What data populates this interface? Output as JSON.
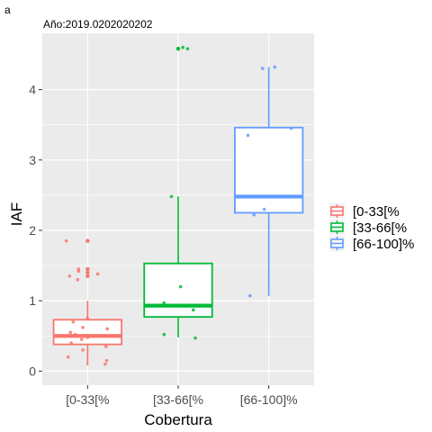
{
  "panel_label": "a",
  "chart_data": {
    "type": "boxplot",
    "title": "Año:2019.0202020202",
    "xlabel": "Cobertura",
    "ylabel": "IAF",
    "categories": [
      "[0-33[%",
      "[33-66[%",
      "[66-100]%"
    ],
    "ylim": [
      -0.2,
      4.8
    ],
    "yticks": [
      0,
      1,
      2,
      3,
      4
    ],
    "ytick_labels": [
      "0",
      "1",
      "2",
      "3",
      "4"
    ],
    "grid": true,
    "legend_position": "right",
    "legend_entries": [
      "[0-33[%",
      "[33-66[%",
      "[66-100]%"
    ],
    "colors": [
      "#F8766D",
      "#00BA38",
      "#619CFF"
    ],
    "series": [
      {
        "category": "[0-33[%",
        "min": 0.08,
        "q1": 0.38,
        "median": 0.5,
        "q3": 0.73,
        "max": 1.0,
        "outliers": [
          1.35,
          1.4,
          1.45,
          1.85
        ],
        "points": [
          0.1,
          0.15,
          0.2,
          0.3,
          0.35,
          0.4,
          0.45,
          0.48,
          0.5,
          0.52,
          0.55,
          0.6,
          0.62,
          0.7,
          0.75,
          1.3,
          1.35,
          1.38,
          1.42,
          1.45,
          1.85
        ]
      },
      {
        "category": "[33-66[%",
        "min": 0.48,
        "q1": 0.77,
        "median": 0.93,
        "q3": 1.53,
        "max": 2.48,
        "outliers": [
          4.58
        ],
        "points": [
          0.47,
          0.52,
          0.87,
          0.93,
          0.97,
          1.2,
          2.48,
          4.58,
          4.6
        ]
      },
      {
        "category": "[66-100]%",
        "min": 1.07,
        "q1": 2.25,
        "median": 2.48,
        "q3": 3.46,
        "max": 4.32,
        "outliers": [],
        "points": [
          1.07,
          2.22,
          2.3,
          3.35,
          3.45,
          4.3,
          4.32
        ]
      }
    ]
  }
}
